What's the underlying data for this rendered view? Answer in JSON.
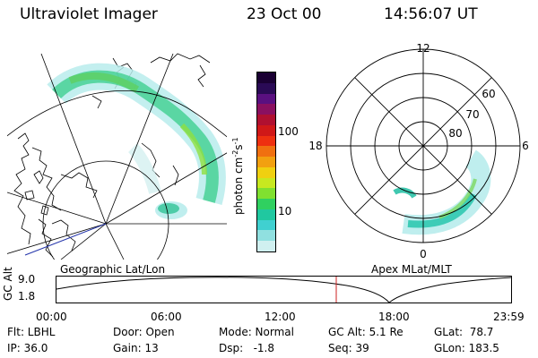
{
  "header": {
    "instrument": "Ultraviolet Imager",
    "date": "23 Oct 00",
    "time": "14:56:07 UT"
  },
  "geo_panel": {
    "caption": "Geographic Lat/Lon"
  },
  "apex_panel": {
    "caption": "Apex MLat/MLT",
    "mlt_labels": {
      "top": "12",
      "left": "18",
      "right": "6",
      "bottom": "0"
    },
    "lat_labels": [
      "60",
      "70",
      "80"
    ]
  },
  "colorbar": {
    "unit_label": "photon cm",
    "unit_sup1": "-2",
    "unit_mid": "s",
    "unit_sup2": "-1",
    "ticks": [
      "100",
      "10"
    ],
    "colors": [
      "#1a0033",
      "#2a0a55",
      "#5a1080",
      "#8a1060",
      "#b01030",
      "#d01818",
      "#ee3010",
      "#f07010",
      "#f2a010",
      "#f0d010",
      "#c8e820",
      "#80e030",
      "#30d060",
      "#20c8a0",
      "#40d0d0",
      "#90e0e0",
      "#d0f0f0"
    ]
  },
  "altitude_strip": {
    "axis_label": "GC Alt",
    "y_top": "9.0",
    "y_bottom": "1.8",
    "time_ticks": [
      "00:00",
      "06:00",
      "12:00",
      "18:00",
      "23:59"
    ],
    "marker_color": "#cc2222"
  },
  "status": {
    "flt": "Flt: LBHL",
    "ip": "IP: 36.0",
    "door": "Door: Open",
    "gain": "Gain: 13",
    "mode": "Mode: Normal",
    "dsp": "Dsp:   -1.8",
    "gc_alt": "GC Alt: 5.1 Re",
    "seq": "Seq: 39",
    "glat": "GLat:  78.7",
    "glon": "GLon: 183.5"
  }
}
